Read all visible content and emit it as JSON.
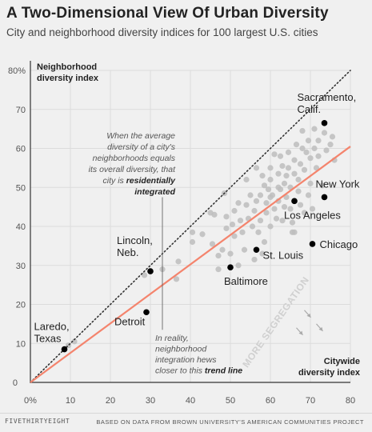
{
  "title": "A Two-Dimensional View Of Urban Diversity",
  "subtitle": "City and neighborhood diversity indices for 100 largest U.S. cities",
  "footer_left": "FIVETHIRTYEIGHT",
  "footer_right": "BASED ON DATA FROM BROWN UNIVERSITY'S AMERICAN COMMUNITIES PROJECT",
  "colors": {
    "background": "#f0f0f0",
    "points_gray": "#bdbdbd",
    "points_highlight": "#000000",
    "trend_line": "#f4846d",
    "diagonal": "#333333",
    "segregation_text": "#d0d0d0"
  },
  "chart_data": {
    "type": "scatter",
    "xlabel": "Citywide diversity index",
    "ylabel_line1": "Neighborhood",
    "ylabel_line2": "diversity index",
    "xlim": [
      0,
      80
    ],
    "ylim": [
      0,
      80
    ],
    "xticks": [
      {
        "v": 0,
        "label": "0%"
      },
      {
        "v": 10,
        "label": "10"
      },
      {
        "v": 20,
        "label": "20"
      },
      {
        "v": 30,
        "label": "30"
      },
      {
        "v": 40,
        "label": "40"
      },
      {
        "v": 50,
        "label": "50"
      },
      {
        "v": 60,
        "label": "60"
      },
      {
        "v": 70,
        "label": "70"
      },
      {
        "v": 80,
        "label": "80"
      }
    ],
    "yticks": [
      {
        "v": 0,
        "label": "0"
      },
      {
        "v": 10,
        "label": "10"
      },
      {
        "v": 20,
        "label": "20"
      },
      {
        "v": 30,
        "label": "30"
      },
      {
        "v": 40,
        "label": "40"
      },
      {
        "v": 50,
        "label": "50"
      },
      {
        "v": 60,
        "label": "60"
      },
      {
        "v": 70,
        "label": "70"
      },
      {
        "v": 80,
        "label": "80%"
      }
    ],
    "grid": true,
    "trend_line": {
      "x": [
        0,
        80
      ],
      "y": [
        0,
        60.5
      ]
    },
    "diagonal": {
      "x": [
        0,
        80
      ],
      "y": [
        0,
        80
      ]
    },
    "highlighted": [
      {
        "name": "Laredo, Texas",
        "lines": [
          "Laredo,",
          "Texas"
        ],
        "x": 8.5,
        "y": 8.5
      },
      {
        "name": "Lincoln, Neb.",
        "lines": [
          "Lincoln,",
          "Neb."
        ],
        "x": 30.0,
        "y": 28.5
      },
      {
        "name": "Detroit",
        "lines": [
          "Detroit"
        ],
        "x": 29.0,
        "y": 18.0
      },
      {
        "name": "Baltimore",
        "lines": [
          "Baltimore"
        ],
        "x": 50.0,
        "y": 29.5
      },
      {
        "name": "St. Louis",
        "lines": [
          "St. Louis"
        ],
        "x": 56.5,
        "y": 34.0
      },
      {
        "name": "Chicago",
        "lines": [
          "Chicago"
        ],
        "x": 70.5,
        "y": 35.5
      },
      {
        "name": "Los Angeles",
        "lines": [
          "Los Angeles"
        ],
        "x": 66.0,
        "y": 46.5
      },
      {
        "name": "New York",
        "lines": [
          "New York"
        ],
        "x": 73.5,
        "y": 47.5
      },
      {
        "name": "Sacramento, Calif.",
        "lines": [
          "Sacramento,",
          "Calif."
        ],
        "x": 73.5,
        "y": 66.5
      }
    ],
    "points": [
      [
        9.5,
        9.5
      ],
      [
        11,
        10.5
      ],
      [
        28.5,
        27.5
      ],
      [
        33,
        29
      ],
      [
        37,
        31
      ],
      [
        36.5,
        26.5
      ],
      [
        40.5,
        36
      ],
      [
        40.5,
        38.5
      ],
      [
        43,
        38
      ],
      [
        45,
        43.5
      ],
      [
        46,
        43
      ],
      [
        45.5,
        35.5
      ],
      [
        47,
        29
      ],
      [
        47,
        32.5
      ],
      [
        48,
        34
      ],
      [
        48.5,
        48.5
      ],
      [
        49,
        39.5
      ],
      [
        49,
        42.5
      ],
      [
        50,
        33
      ],
      [
        50.5,
        40.5
      ],
      [
        51,
        37.5
      ],
      [
        51,
        44
      ],
      [
        52,
        30
      ],
      [
        52,
        46
      ],
      [
        52.5,
        41.5
      ],
      [
        53,
        38.5
      ],
      [
        53.5,
        34
      ],
      [
        54,
        45.5
      ],
      [
        54.5,
        42
      ],
      [
        55,
        48
      ],
      [
        55.5,
        40
      ],
      [
        56,
        31.5
      ],
      [
        56,
        44
      ],
      [
        56.5,
        46.5
      ],
      [
        57,
        38.5
      ],
      [
        57.5,
        41.5
      ],
      [
        57.5,
        48
      ],
      [
        58,
        33
      ],
      [
        58,
        53
      ],
      [
        58.5,
        50.5
      ],
      [
        59,
        43.5
      ],
      [
        59,
        46
      ],
      [
        59.5,
        49.5
      ],
      [
        60,
        40
      ],
      [
        60,
        52
      ],
      [
        60,
        55
      ],
      [
        60.5,
        48
      ],
      [
        61,
        44.5
      ],
      [
        61,
        58.5
      ],
      [
        61.5,
        42
      ],
      [
        62,
        50
      ],
      [
        62,
        53.5
      ],
      [
        62,
        46.5
      ],
      [
        62.5,
        49.5
      ],
      [
        63,
        55.5
      ],
      [
        63,
        41.5
      ],
      [
        63.5,
        45
      ],
      [
        63.5,
        51
      ],
      [
        64,
        47.5
      ],
      [
        64,
        53
      ],
      [
        64.5,
        55
      ],
      [
        64.5,
        59
      ],
      [
        65,
        44.5
      ],
      [
        65,
        50
      ],
      [
        65.5,
        41
      ],
      [
        66,
        38.5
      ],
      [
        66,
        53.5
      ],
      [
        66,
        57
      ],
      [
        66.5,
        61
      ],
      [
        67,
        49
      ],
      [
        67,
        52
      ],
      [
        67.5,
        45.5
      ],
      [
        67.5,
        56
      ],
      [
        68,
        60
      ],
      [
        68.5,
        43.5
      ],
      [
        68.5,
        54.5
      ],
      [
        69,
        59
      ],
      [
        69.5,
        48
      ],
      [
        69.5,
        62
      ],
      [
        70,
        51
      ],
      [
        70,
        57.5
      ],
      [
        70.5,
        44.5
      ],
      [
        71,
        60
      ],
      [
        71.5,
        55
      ],
      [
        72,
        62
      ],
      [
        72,
        58
      ],
      [
        73,
        50.5
      ],
      [
        73.5,
        64
      ],
      [
        74,
        59.5
      ],
      [
        75,
        61
      ],
      [
        75.5,
        63
      ],
      [
        76,
        57
      ],
      [
        65.5,
        38.5
      ],
      [
        54,
        52
      ],
      [
        56.5,
        55
      ],
      [
        68,
        64.5
      ],
      [
        71,
        65
      ],
      [
        60,
        47.5
      ],
      [
        62.5,
        58
      ],
      [
        58.5,
        36
      ]
    ],
    "annotations": {
      "integrated": {
        "lines": [
          [
            {
              "t": "When the average",
              "b": false
            }
          ],
          [
            {
              "t": "diversity of a city's",
              "b": false
            }
          ],
          [
            {
              "t": "neighborhoods equals",
              "b": false
            }
          ],
          [
            {
              "t": "its overall diversity, that",
              "b": false
            }
          ],
          [
            {
              "t": "city is ",
              "b": false
            },
            {
              "t": "residentially",
              "b": true
            }
          ],
          [
            {
              "t": "integrated",
              "b": true
            }
          ]
        ]
      },
      "trend": {
        "lines": [
          [
            {
              "t": "In reality,",
              "b": false
            }
          ],
          [
            {
              "t": "neighborhood",
              "b": false
            }
          ],
          [
            {
              "t": "integration hews",
              "b": false
            }
          ],
          [
            {
              "t": "closer to this ",
              "b": false
            },
            {
              "t": "trend line",
              "b": true
            }
          ]
        ]
      },
      "segregation": "MORE SEGREGATION"
    }
  }
}
